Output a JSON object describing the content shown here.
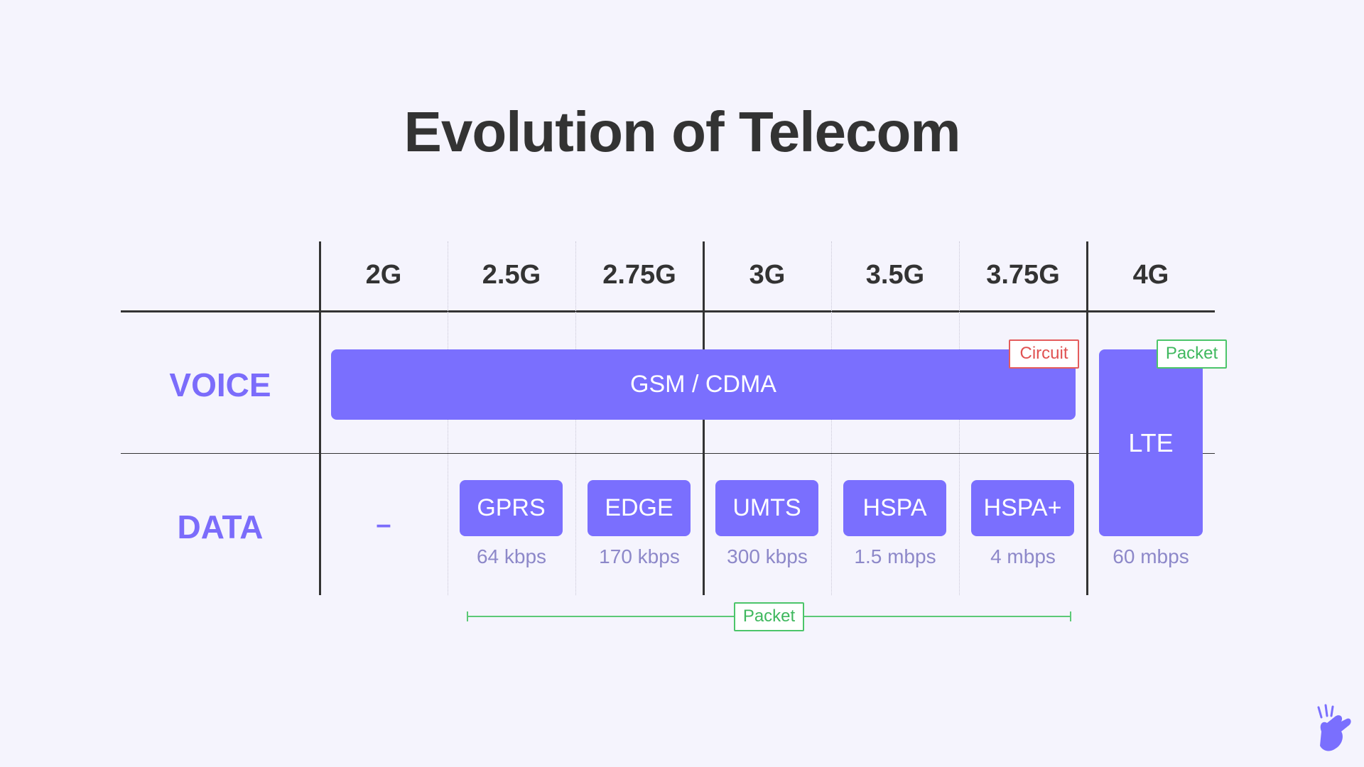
{
  "title": "Evolution of Telecom",
  "generations": [
    "2G",
    "2.5G",
    "2.75G",
    "3G",
    "3.5G",
    "3.75G",
    "4G"
  ],
  "rows": {
    "voice": "VOICE",
    "data": "DATA"
  },
  "voice_bar": {
    "label": "GSM / CDMA",
    "tag": "Circuit"
  },
  "lte": {
    "label": "LTE",
    "tag": "Packet",
    "speed": "60 mbps"
  },
  "data_2g": "–",
  "data_techs": [
    {
      "label": "GPRS",
      "speed": "64 kbps"
    },
    {
      "label": "EDGE",
      "speed": "170 kbps"
    },
    {
      "label": "UMTS",
      "speed": "300 kbps"
    },
    {
      "label": "HSPA",
      "speed": "1.5 mbps"
    },
    {
      "label": "HSPA+",
      "speed": "4 mbps"
    }
  ],
  "packet_range_tag": "Packet",
  "colors": {
    "accent": "#7a6ffe",
    "circuit": "#e05252",
    "packet": "#3fb85e",
    "speed_text": "#8d88c9"
  },
  "logo_icon": "snapping-hand-icon"
}
